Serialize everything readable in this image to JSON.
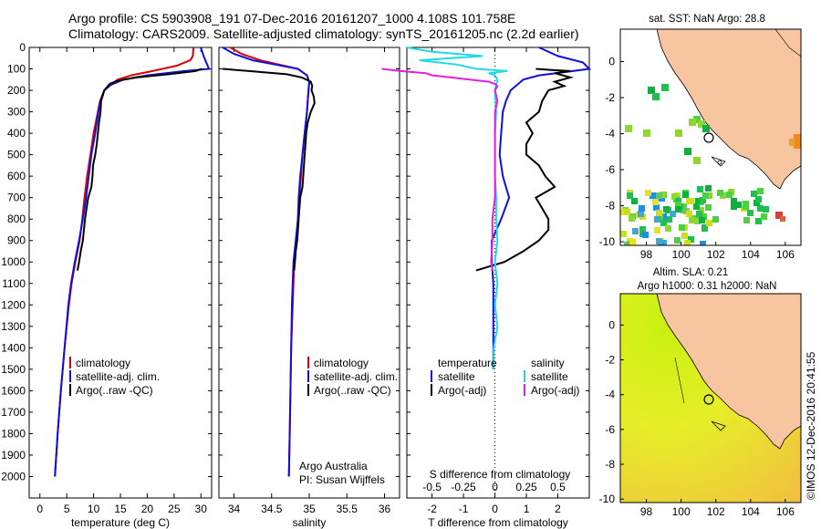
{
  "header": {
    "line1": "Argo profile: CS 5903908_191 07-Dec-2016 20161207_1000 4.108S 101.758E",
    "line2": "Climatology: CARS2009. Satellite-adjusted climatology: synTS_20161205.nc (2.2d earlier)"
  },
  "colors": {
    "climatology": "#dd0000",
    "satellite": "#1010dd",
    "argo": "#000000",
    "salinity_satellite": "#22d8e8",
    "salinity_argo": "#e020e0",
    "land": "#f7c59f"
  },
  "depth_axis": {
    "ticks": [
      "0",
      "100",
      "200",
      "300",
      "400",
      "500",
      "600",
      "700",
      "800",
      "900",
      "1000",
      "1100",
      "1200",
      "1300",
      "1400",
      "1500",
      "1600",
      "1700",
      "1800",
      "1900",
      "2000"
    ]
  },
  "legend_profiles": [
    "climatology",
    "satellite-adj. clim.",
    "Argo(..raw -QC)"
  ],
  "legend_diff": {
    "temperature": {
      "title": "temperature",
      "items": [
        "satellite",
        "Argo(-adj)"
      ]
    },
    "salinity": {
      "title": "salinity",
      "items": [
        "satellite",
        "Argo(-adj)"
      ]
    }
  },
  "credits": {
    "line1": "Argo Australia",
    "line2": "PI: Susan Wijffels"
  },
  "map_top": {
    "title": "sat. SST: NaN Argo: 28.8",
    "xticks": [
      "98",
      "100",
      "102",
      "104",
      "106"
    ],
    "yticks": [
      "0",
      "-2",
      "-4",
      "-6",
      "-8",
      "-10"
    ]
  },
  "map_bottom": {
    "title1": "Altim. SLA: 0.21",
    "title2": "Argo h1000: 0.31 h2000: NaN",
    "xticks": [
      "98",
      "100",
      "102",
      "104",
      "106"
    ],
    "yticks": [
      "0",
      "-2",
      "-4",
      "-6",
      "-8",
      "-10"
    ]
  },
  "watermark": "©IMOS 12-Dec-2016 20:41:55",
  "chart_data": [
    {
      "type": "line",
      "xlabel": "temperature (deg C)",
      "xticks": [
        "0",
        "5",
        "10",
        "15",
        "20",
        "25",
        "30"
      ],
      "xlim": [
        -2,
        32
      ],
      "ylim": [
        2100,
        0
      ],
      "series": [
        {
          "name": "climatology",
          "depth": [
            0,
            40,
            60,
            85,
            110,
            130,
            150,
            175,
            200,
            250,
            300,
            400,
            500,
            600,
            700,
            800,
            900,
            1000,
            1100,
            1200,
            1400,
            1600,
            1800,
            2000
          ],
          "values": [
            28.6,
            28.5,
            28.0,
            25.5,
            21.0,
            17.0,
            14.5,
            13.0,
            12.0,
            11.2,
            10.8,
            10.0,
            9.4,
            8.8,
            8.3,
            7.9,
            7.4,
            6.6,
            5.9,
            5.4,
            4.6,
            3.9,
            3.3,
            2.8
          ]
        },
        {
          "name": "satellite-adj. clim.",
          "depth": [
            0,
            40,
            70,
            100,
            110,
            130,
            150,
            175,
            200,
            250,
            300,
            400,
            500,
            600,
            700,
            800,
            900,
            1000,
            1100,
            1200,
            1400,
            1600,
            1800,
            2000
          ],
          "values": [
            30.0,
            30.5,
            31.0,
            31.5,
            27.0,
            20.0,
            15.5,
            13.2,
            12.0,
            11.3,
            10.9,
            10.3,
            9.6,
            9.1,
            8.6,
            8.0,
            7.3,
            6.5,
            5.8,
            5.3,
            4.6,
            3.9,
            3.3,
            2.8
          ]
        },
        {
          "name": "Argo(..raw -QC)",
          "depth": [
            100,
            110,
            125,
            140,
            155,
            170,
            200,
            250,
            300,
            350,
            400,
            450,
            500,
            550,
            600,
            650,
            700,
            750,
            800,
            850,
            900,
            950,
            1000,
            1040
          ],
          "values": [
            30.2,
            29.0,
            24.0,
            18.0,
            14.5,
            13.0,
            12.0,
            11.4,
            11.3,
            11.0,
            10.8,
            10.6,
            10.3,
            9.9,
            9.8,
            9.6,
            9.0,
            8.7,
            8.4,
            8.2,
            8.0,
            7.6,
            7.3,
            7.0
          ]
        }
      ]
    },
    {
      "type": "line",
      "xlabel": "salinity",
      "xticks": [
        "34",
        "34.5",
        "35",
        "35.5",
        "36"
      ],
      "xlim": [
        33.8,
        36.2
      ],
      "ylim": [
        2100,
        0
      ],
      "series": [
        {
          "name": "climatology",
          "depth": [
            0,
            30,
            60,
            80,
            100,
            130,
            160,
            200,
            300,
            400,
            500,
            600,
            700,
            800,
            900,
            1000,
            1200,
            1400,
            1600,
            1800,
            2000
          ],
          "values": [
            33.95,
            34.1,
            34.35,
            34.6,
            34.85,
            34.97,
            35.0,
            34.99,
            34.97,
            34.94,
            34.91,
            34.89,
            34.87,
            34.85,
            34.83,
            34.8,
            34.78,
            34.76,
            34.75,
            34.74,
            34.73
          ]
        },
        {
          "name": "satellite-adj. clim.",
          "depth": [
            0,
            30,
            60,
            80,
            100,
            130,
            160,
            200,
            300,
            400,
            500,
            600,
            700,
            800,
            900,
            1000,
            1200,
            1400,
            1600,
            1800,
            2000
          ],
          "values": [
            33.85,
            34.0,
            34.25,
            34.55,
            34.85,
            34.97,
            35.0,
            34.99,
            34.97,
            34.94,
            34.91,
            34.88,
            34.86,
            34.85,
            34.82,
            34.79,
            34.77,
            34.76,
            34.75,
            34.74,
            34.73
          ]
        },
        {
          "name": "Argo(..raw -QC)",
          "depth": [
            100,
            110,
            125,
            140,
            160,
            180,
            200,
            230,
            260,
            300,
            350,
            400,
            450,
            500,
            550,
            600,
            650,
            700,
            750,
            800,
            850,
            900,
            950,
            1000,
            1040
          ],
          "values": [
            33.85,
            34.2,
            34.7,
            34.9,
            35.02,
            35.04,
            35.03,
            35.06,
            35.07,
            35.02,
            34.98,
            34.96,
            34.95,
            34.94,
            34.93,
            34.92,
            34.91,
            34.88,
            34.87,
            34.86,
            34.85,
            34.84,
            34.82,
            34.81,
            34.8
          ]
        }
      ]
    },
    {
      "type": "line",
      "xlabel": "T difference from climatology",
      "x2label": "S difference from climatology",
      "xticks": [
        "-2",
        "-1",
        "0",
        "1",
        "2"
      ],
      "x2ticks": [
        "-0.5",
        "-0.25",
        "0",
        "0.25",
        "0.5"
      ],
      "xlim": [
        -2.8,
        3.0
      ],
      "ylim": [
        2100,
        0
      ],
      "series": [
        {
          "name": "temperature satellite",
          "depth": [
            0,
            40,
            70,
            100,
            115,
            130,
            150,
            175,
            200,
            250,
            300,
            400,
            500,
            600,
            700,
            800,
            900,
            1000,
            1100,
            1200,
            1400,
            1500
          ],
          "values": [
            1.4,
            2.0,
            2.8,
            3.0,
            2.2,
            1.4,
            0.9,
            0.7,
            0.5,
            0.35,
            0.25,
            0.2,
            0.15,
            0.25,
            0.45,
            0.2,
            -0.1,
            -0.1,
            -0.05,
            -0.05,
            -0.05,
            -0.05
          ]
        },
        {
          "name": "temperature Argo(-adj)",
          "depth": [
            100,
            105,
            110,
            120,
            140,
            160,
            180,
            200,
            250,
            300,
            350,
            400,
            450,
            500,
            550,
            600,
            650,
            700,
            750,
            800,
            850,
            900,
            950,
            1000,
            1040
          ],
          "values": [
            1.3,
            1.8,
            2.4,
            1.9,
            2.4,
            1.9,
            2.2,
            1.7,
            1.5,
            1.4,
            1.0,
            1.2,
            1.0,
            1.0,
            1.4,
            1.6,
            1.9,
            1.3,
            1.5,
            1.7,
            1.7,
            1.4,
            0.9,
            0.3,
            -0.6
          ]
        },
        {
          "name": "salinity satellite",
          "depth": [
            0,
            20,
            40,
            60,
            80,
            100,
            110,
            120,
            130,
            150,
            175,
            200,
            300,
            400,
            500,
            600,
            700,
            800,
            900,
            1000,
            1100,
            1200,
            1300,
            1400,
            1500
          ],
          "values": [
            -0.7,
            -0.5,
            -0.1,
            -0.6,
            -0.3,
            -0.15,
            0.1,
            -0.05,
            0.0,
            0.02,
            0.01,
            0.0,
            0.01,
            0.0,
            0.0,
            0.0,
            0.01,
            0.01,
            0.02,
            0.0,
            0.02,
            0.0,
            0.02,
            -0.01,
            -0.01
          ]
        },
        {
          "name": "salinity Argo(-adj)",
          "depth": [
            100,
            110,
            120,
            130,
            140,
            150,
            160,
            170,
            180,
            200,
            250,
            300,
            400,
            500,
            600,
            700,
            800,
            900,
            1000,
            1040
          ],
          "values": [
            -0.9,
            -0.75,
            -0.55,
            -0.5,
            -0.35,
            -0.2,
            -0.05,
            0.0,
            0.02,
            0.0,
            0.02,
            0.0,
            0.0,
            0.0,
            0.0,
            0.0,
            -0.02,
            -0.02,
            -0.03,
            -0.02
          ]
        }
      ]
    }
  ]
}
